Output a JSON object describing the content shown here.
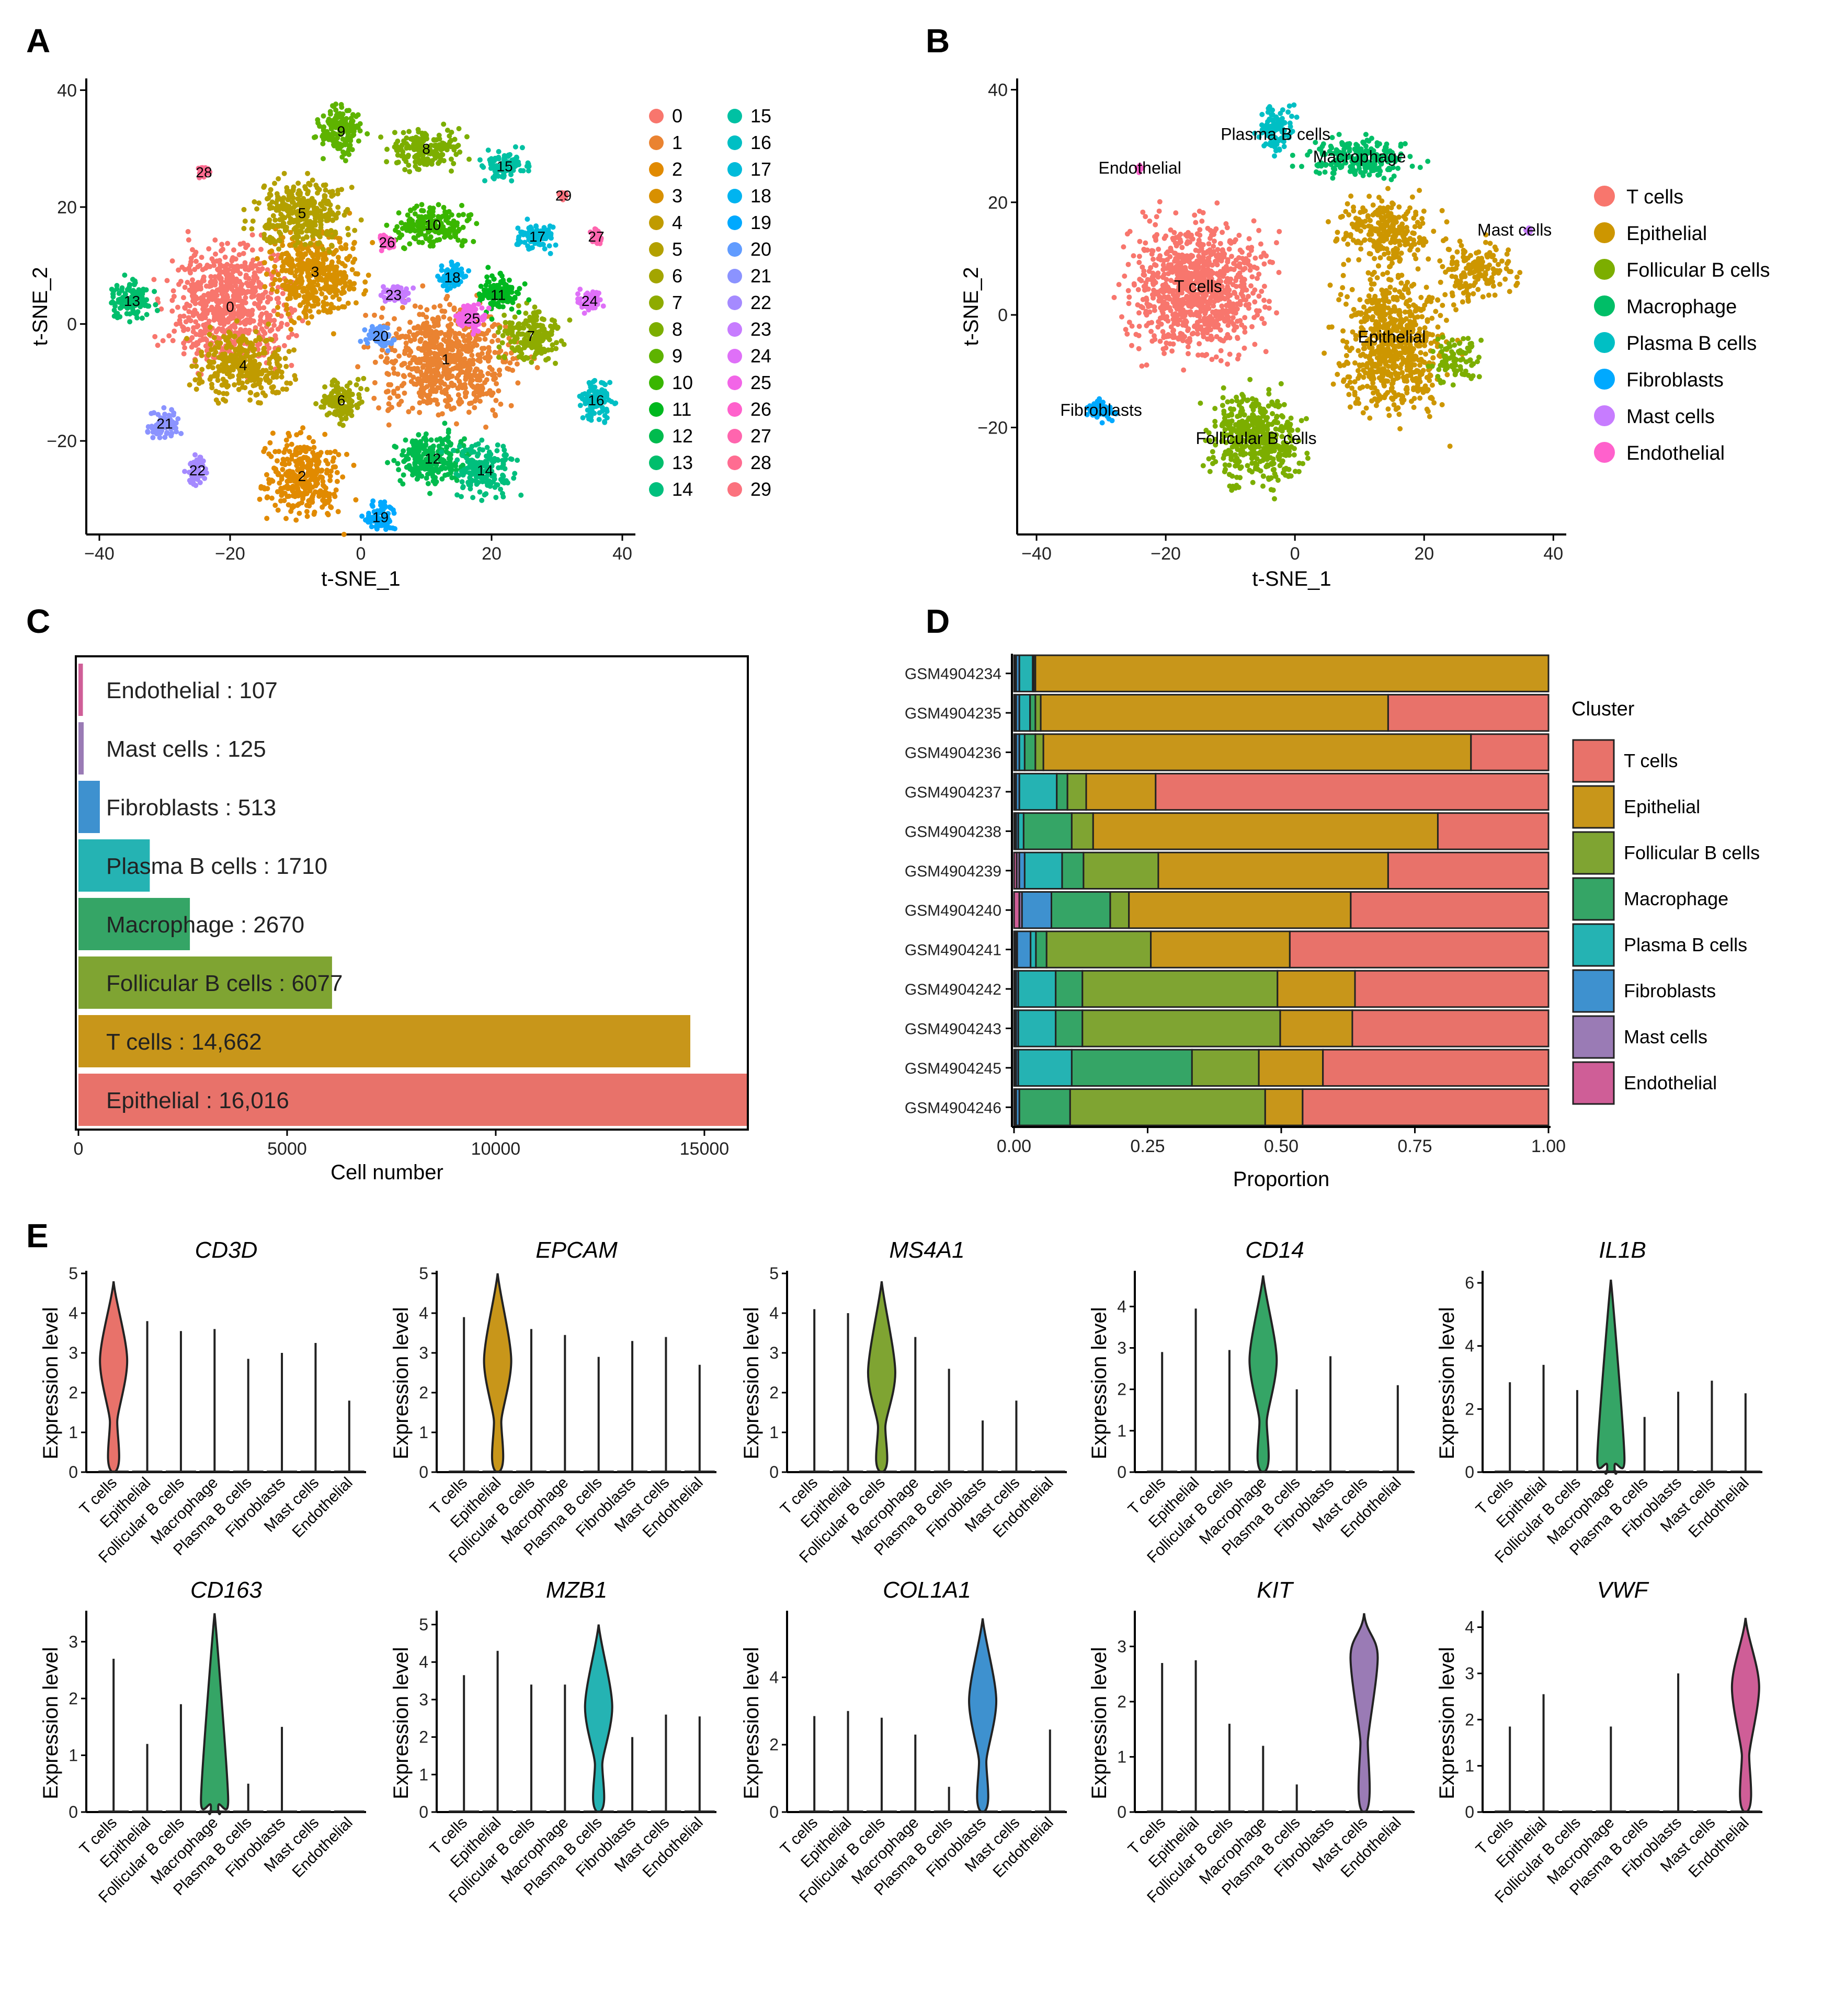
{
  "panel_letters": [
    "A",
    "B",
    "C",
    "D",
    "E"
  ],
  "cell_types": [
    {
      "name": "T cells",
      "tsne_color": "#F8766D",
      "bar_color": "#E8726A"
    },
    {
      "name": "Epithelial",
      "tsne_color": "#CD9600",
      "bar_color": "#C8961A"
    },
    {
      "name": "Follicular B cells",
      "tsne_color": "#7CAE00",
      "bar_color": "#7FA432"
    },
    {
      "name": "Macrophage",
      "tsne_color": "#00BE67",
      "bar_color": "#35A566"
    },
    {
      "name": "Plasma B cells",
      "tsne_color": "#00BFC4",
      "bar_color": "#25B3B3"
    },
    {
      "name": "Fibroblasts",
      "tsne_color": "#00A9FF",
      "bar_color": "#3E91CF"
    },
    {
      "name": "Mast cells",
      "tsne_color": "#C77CFF",
      "bar_color": "#9A7BB5"
    },
    {
      "name": "Endothelial",
      "tsne_color": "#FF61CC",
      "bar_color": "#CF5E97"
    }
  ],
  "chart_data": [
    {
      "panel": "A",
      "type": "scatter",
      "title": "",
      "xlabel": "t-SNE_1",
      "ylabel": "t-SNE_2",
      "xlim": [
        -42,
        42
      ],
      "ylim": [
        -36,
        42
      ],
      "xticks": [
        -40,
        -20,
        0,
        20,
        40
      ],
      "yticks": [
        -20,
        0,
        20,
        40
      ],
      "legend_title": "",
      "legend_position": "right",
      "clusters": [
        {
          "id": "0",
          "x": -20,
          "y": 3,
          "color": "#F8766D"
        },
        {
          "id": "1",
          "x": 13,
          "y": -6,
          "color": "#EA8331"
        },
        {
          "id": "2",
          "x": -9,
          "y": -26,
          "color": "#E18A00"
        },
        {
          "id": "3",
          "x": -7,
          "y": 9,
          "color": "#D89000"
        },
        {
          "id": "4",
          "x": -18,
          "y": -7,
          "color": "#C09B00"
        },
        {
          "id": "5",
          "x": -9,
          "y": 19,
          "color": "#B3A000"
        },
        {
          "id": "6",
          "x": -3,
          "y": -13,
          "color": "#A3A500"
        },
        {
          "id": "7",
          "x": 26,
          "y": -2,
          "color": "#8EAB00"
        },
        {
          "id": "8",
          "x": 10,
          "y": 30,
          "color": "#7CAE00"
        },
        {
          "id": "9",
          "x": -3,
          "y": 33,
          "color": "#5EB300"
        },
        {
          "id": "10",
          "x": 11,
          "y": 17,
          "color": "#39B600"
        },
        {
          "id": "11",
          "x": 21,
          "y": 5,
          "color": "#00B81F"
        },
        {
          "id": "12",
          "x": 11,
          "y": -23,
          "color": "#00BB4E"
        },
        {
          "id": "13",
          "x": -35,
          "y": 4,
          "color": "#00BE6C"
        },
        {
          "id": "14",
          "x": 19,
          "y": -25,
          "color": "#00BF7D"
        },
        {
          "id": "15",
          "x": 22,
          "y": 27,
          "color": "#00C1A3"
        },
        {
          "id": "16",
          "x": 36,
          "y": -13,
          "color": "#00BFC4"
        },
        {
          "id": "17",
          "x": 27,
          "y": 15,
          "color": "#00BBDA"
        },
        {
          "id": "18",
          "x": 14,
          "y": 8,
          "color": "#00B4F0"
        },
        {
          "id": "19",
          "x": 3,
          "y": -33,
          "color": "#00A9FF"
        },
        {
          "id": "20",
          "x": 3,
          "y": -2,
          "color": "#619CFF"
        },
        {
          "id": "21",
          "x": -30,
          "y": -17,
          "color": "#8B93FF"
        },
        {
          "id": "22",
          "x": -25,
          "y": -25,
          "color": "#A58AFF"
        },
        {
          "id": "23",
          "x": 5,
          "y": 5,
          "color": "#C77CFF"
        },
        {
          "id": "24",
          "x": 35,
          "y": 4,
          "color": "#DF70F8"
        },
        {
          "id": "25",
          "x": 17,
          "y": 1,
          "color": "#F265E7"
        },
        {
          "id": "26",
          "x": 4,
          "y": 14,
          "color": "#FF61CC"
        },
        {
          "id": "27",
          "x": 36,
          "y": 15,
          "color": "#FF65AE"
        },
        {
          "id": "28",
          "x": -24,
          "y": 26,
          "color": "#FF6C91"
        },
        {
          "id": "29",
          "x": 31,
          "y": 22,
          "color": "#FB727E"
        }
      ]
    },
    {
      "panel": "B",
      "type": "scatter",
      "title": "",
      "xlabel": "t-SNE_1",
      "ylabel": "t-SNE_2",
      "xlim": [
        -43,
        42
      ],
      "ylim": [
        -39,
        42
      ],
      "xticks": [
        -40,
        -20,
        0,
        20,
        40
      ],
      "yticks": [
        -20,
        0,
        20,
        40
      ],
      "legend_position": "right",
      "labels": [
        {
          "name": "T cells",
          "x": -15,
          "y": 5
        },
        {
          "name": "Epithelial",
          "x": 15,
          "y": -4
        },
        {
          "name": "Follicular B cells",
          "x": -6,
          "y": -22
        },
        {
          "name": "Macrophage",
          "x": 10,
          "y": 28
        },
        {
          "name": "Plasma B cells",
          "x": -3,
          "y": 32
        },
        {
          "name": "Fibroblasts",
          "x": -30,
          "y": -17
        },
        {
          "name": "Mast cells",
          "x": 34,
          "y": 15
        },
        {
          "name": "Endothelial",
          "x": -24,
          "y": 26
        }
      ]
    },
    {
      "panel": "C",
      "type": "bar",
      "orientation": "horizontal",
      "xlabel": "Cell number",
      "ylabel": "",
      "xlim": [
        0,
        16016
      ],
      "xticks": [
        0,
        5000,
        10000,
        15000
      ],
      "categories": [
        "Epithelial",
        "T cells",
        "Follicular B cells",
        "Macrophage",
        "Plasma B cells",
        "Fibroblasts",
        "Mast cells",
        "Endothelial"
      ],
      "values": [
        16016,
        14662,
        6077,
        2670,
        1710,
        513,
        125,
        107
      ],
      "labels": [
        "Epithelial : 16,016",
        "T cells : 14,662",
        "Follicular B cells : 6077",
        "Macrophage : 2670",
        "Plasma B cells : 1710",
        "Fibroblasts : 513",
        "Mast cells : 125",
        "Endothelial : 107"
      ],
      "colors": [
        "#E8726A",
        "#C8961A",
        "#7FA432",
        "#35A566",
        "#25B3B3",
        "#3E91CF",
        "#9A7BB5",
        "#CF5E97"
      ]
    },
    {
      "panel": "D",
      "type": "bar",
      "orientation": "horizontal-stacked",
      "xlabel": "Proportion",
      "xlim": [
        0,
        1
      ],
      "xticks": [
        "0.00",
        "0.25",
        "0.50",
        "0.75",
        "1.00"
      ],
      "legend_title": "Cluster",
      "legend_position": "right",
      "stack_order": [
        "Endothelial",
        "Mast cells",
        "Fibroblasts",
        "Plasma B cells",
        "Macrophage",
        "Follicular B cells",
        "Epithelial",
        "T cells"
      ],
      "samples": [
        "GSM4904234",
        "GSM4904235",
        "GSM4904236",
        "GSM4904237",
        "GSM4904238",
        "GSM4904239",
        "GSM4904240",
        "GSM4904241",
        "GSM4904242",
        "GSM4904243",
        "GSM4904245",
        "GSM4904246"
      ],
      "series": [
        {
          "name": "Endothelial",
          "values": [
            0.002,
            0.002,
            0.002,
            0.002,
            0.002,
            0.005,
            0.01,
            0.003,
            0.002,
            0.002,
            0.002,
            0.002
          ]
        },
        {
          "name": "Mast cells",
          "values": [
            0.002,
            0.002,
            0.002,
            0.002,
            0.002,
            0.005,
            0.005,
            0.003,
            0.002,
            0.002,
            0.002,
            0.002
          ]
        },
        {
          "name": "Fibroblasts",
          "values": [
            0.006,
            0.006,
            0.006,
            0.006,
            0.004,
            0.01,
            0.055,
            0.025,
            0.004,
            0.004,
            0.004,
            0.006
          ]
        },
        {
          "name": "Plasma B cells",
          "values": [
            0.025,
            0.02,
            0.01,
            0.07,
            0.01,
            0.07,
            0.0,
            0.01,
            0.07,
            0.07,
            0.1,
            0.0
          ]
        },
        {
          "name": "Macrophage",
          "values": [
            0.002,
            0.01,
            0.02,
            0.02,
            0.09,
            0.04,
            0.11,
            0.02,
            0.05,
            0.05,
            0.225,
            0.095
          ]
        },
        {
          "name": "Follicular B cells",
          "values": [
            0.003,
            0.01,
            0.015,
            0.035,
            0.04,
            0.14,
            0.035,
            0.195,
            0.365,
            0.37,
            0.125,
            0.365
          ]
        },
        {
          "name": "Epithelial",
          "values": [
            0.96,
            0.65,
            0.8,
            0.13,
            0.645,
            0.43,
            0.415,
            0.26,
            0.145,
            0.135,
            0.12,
            0.07
          ]
        },
        {
          "name": "T cells",
          "values": [
            0.0,
            0.3,
            0.145,
            0.735,
            0.207,
            0.3,
            0.37,
            0.484,
            0.362,
            0.367,
            0.422,
            0.46
          ]
        }
      ]
    },
    {
      "panel": "E",
      "type": "violin",
      "ylabel": "Expression level",
      "categories": [
        "T cells",
        "Epithelial",
        "Follicular B cells",
        "Macrophage",
        "Plasma B cells",
        "Fibroblasts",
        "Mast cells",
        "Endothelial"
      ],
      "genes": [
        {
          "gene": "CD3D",
          "ymax": 5,
          "yticks": [
            0,
            1,
            2,
            3,
            4,
            5
          ],
          "maxima": [
            4.8,
            3.8,
            3.55,
            3.6,
            2.85,
            3.0,
            3.25,
            1.8
          ],
          "high": 0,
          "mode": 2.8,
          "color": "#E8726A"
        },
        {
          "gene": "EPCAM",
          "ymax": 5,
          "yticks": [
            0,
            1,
            2,
            3,
            4,
            5
          ],
          "maxima": [
            3.9,
            5.0,
            3.6,
            3.45,
            2.9,
            3.3,
            3.4,
            2.7
          ],
          "high": 1,
          "mode": 2.8,
          "color": "#C8961A"
        },
        {
          "gene": "MS4A1",
          "ymax": 5,
          "yticks": [
            0,
            1,
            2,
            3,
            4,
            5
          ],
          "maxima": [
            4.1,
            4.0,
            4.8,
            3.4,
            2.6,
            1.3,
            1.8,
            0.0
          ],
          "high": 2,
          "mode": 2.5,
          "color": "#7FA432"
        },
        {
          "gene": "CD14",
          "ymax": 4.8,
          "yticks": [
            0,
            1,
            2,
            3,
            4
          ],
          "maxima": [
            2.9,
            3.95,
            2.95,
            4.75,
            2.0,
            2.8,
            0.0,
            2.1
          ],
          "high": 3,
          "mode": 2.7,
          "color": "#35A566"
        },
        {
          "gene": "IL1B",
          "ymax": 6.3,
          "yticks": [
            0,
            2,
            4,
            6
          ],
          "maxima": [
            2.85,
            3.4,
            2.6,
            6.1,
            1.75,
            2.55,
            2.9,
            2.5
          ],
          "high": 3,
          "mode": 0.4,
          "color": "#35A566"
        },
        {
          "gene": "CD163",
          "ymax": 3.5,
          "yticks": [
            0,
            1,
            2,
            3
          ],
          "maxima": [
            2.7,
            1.2,
            1.9,
            3.5,
            0.5,
            1.5,
            0.0,
            0.0
          ],
          "high": 3,
          "mode": 0.2,
          "color": "#35A566"
        },
        {
          "gene": "MZB1",
          "ymax": 5.3,
          "yticks": [
            0,
            1,
            2,
            3,
            4,
            5
          ],
          "maxima": [
            3.65,
            4.3,
            3.4,
            3.4,
            5.0,
            2.0,
            2.6,
            2.55
          ],
          "high": 4,
          "mode": 2.8,
          "color": "#25B3B3"
        },
        {
          "gene": "COL1A1",
          "ymax": 5.9,
          "yticks": [
            0,
            2,
            4
          ],
          "maxima": [
            2.85,
            3.0,
            2.8,
            2.3,
            0.75,
            5.75,
            0.0,
            2.45
          ],
          "high": 5,
          "mode": 3.3,
          "color": "#3E91CF"
        },
        {
          "gene": "KIT",
          "ymax": 3.6,
          "yticks": [
            0,
            1,
            2,
            3
          ],
          "maxima": [
            2.7,
            2.75,
            1.6,
            1.2,
            0.5,
            0.0,
            3.6,
            0.0
          ],
          "high": 6,
          "mode": 2.8,
          "color": "#9A7BB5"
        },
        {
          "gene": "VWF",
          "ymax": 4.3,
          "yticks": [
            0,
            1,
            2,
            3,
            4
          ],
          "maxima": [
            1.85,
            2.55,
            0.0,
            1.85,
            0.0,
            3.0,
            0.0,
            4.2
          ],
          "high": 7,
          "mode": 2.7,
          "color": "#CF5E97"
        }
      ]
    }
  ]
}
